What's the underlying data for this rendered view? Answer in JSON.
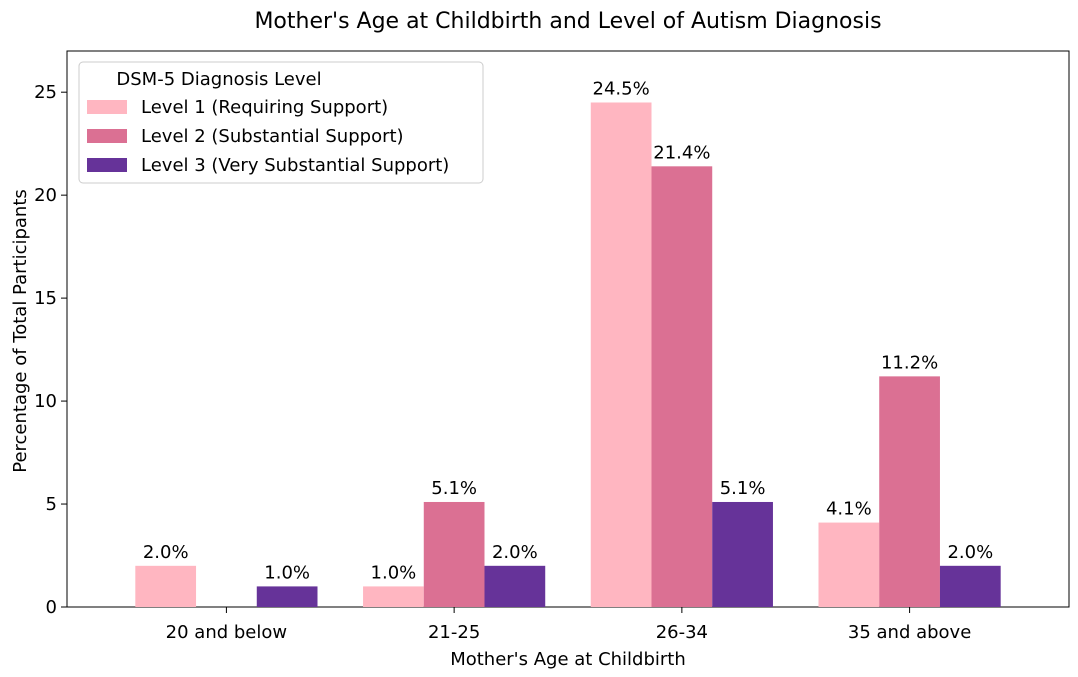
{
  "chart_data": {
    "type": "bar",
    "title": "Mother's Age at Childbirth and Level of Autism Diagnosis",
    "xlabel": "Mother's Age at Childbirth",
    "ylabel": "Percentage of Total Participants",
    "categories": [
      "20 and below",
      "21-25",
      "26-34",
      "35 and above"
    ],
    "ylim": [
      0,
      27
    ],
    "yticks": [
      0,
      5,
      10,
      15,
      20,
      25
    ],
    "grid": false,
    "legend": {
      "title": "DSM-5 Diagnosis Level",
      "placement": "top-left"
    },
    "series": [
      {
        "name": "Level 1 (Requiring Support)",
        "color": "#FFB6C1",
        "values": [
          2.0,
          1.0,
          24.5,
          4.1
        ],
        "labels": [
          "2.0%",
          "1.0%",
          "24.5%",
          "4.1%"
        ]
      },
      {
        "name": "Level 2 (Substantial Support)",
        "color": "#DB7093",
        "values": [
          0.0,
          5.1,
          21.4,
          11.2
        ],
        "labels": [
          "",
          "5.1%",
          "21.4%",
          "11.2%"
        ]
      },
      {
        "name": "Level 3 (Very Substantial Support)",
        "color": "#663399",
        "values": [
          1.0,
          2.0,
          5.1,
          2.0
        ],
        "labels": [
          "1.0%",
          "2.0%",
          "5.1%",
          "2.0%"
        ]
      }
    ]
  }
}
